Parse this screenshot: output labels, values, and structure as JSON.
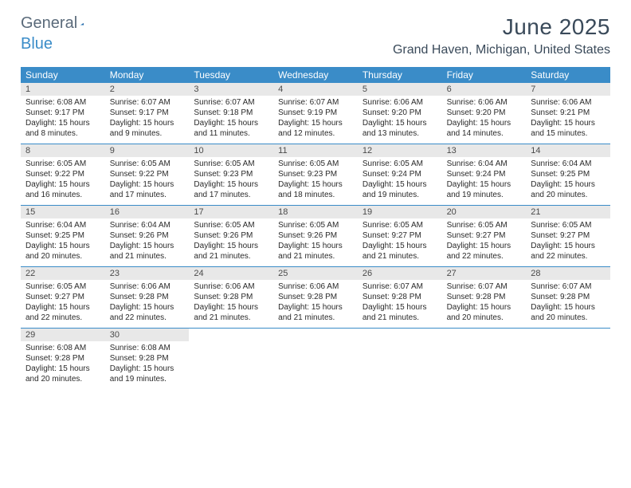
{
  "logo": {
    "general": "General",
    "blue": "Blue"
  },
  "title": {
    "month": "June 2025",
    "location": "Grand Haven, Michigan, United States"
  },
  "colors": {
    "header_bg": "#3a8cc8",
    "header_text": "#ffffff",
    "daynum_bg": "#e8e8e8",
    "daynum_text": "#4a4a4a",
    "body_text": "#2a2a2a",
    "title_text": "#3a4a5a",
    "rule": "#3a8cc8"
  },
  "dow": [
    "Sunday",
    "Monday",
    "Tuesday",
    "Wednesday",
    "Thursday",
    "Friday",
    "Saturday"
  ],
  "days": [
    {
      "n": "1",
      "sr": "6:08 AM",
      "ss": "9:17 PM",
      "dl": "15 hours and 8 minutes."
    },
    {
      "n": "2",
      "sr": "6:07 AM",
      "ss": "9:17 PM",
      "dl": "15 hours and 9 minutes."
    },
    {
      "n": "3",
      "sr": "6:07 AM",
      "ss": "9:18 PM",
      "dl": "15 hours and 11 minutes."
    },
    {
      "n": "4",
      "sr": "6:07 AM",
      "ss": "9:19 PM",
      "dl": "15 hours and 12 minutes."
    },
    {
      "n": "5",
      "sr": "6:06 AM",
      "ss": "9:20 PM",
      "dl": "15 hours and 13 minutes."
    },
    {
      "n": "6",
      "sr": "6:06 AM",
      "ss": "9:20 PM",
      "dl": "15 hours and 14 minutes."
    },
    {
      "n": "7",
      "sr": "6:06 AM",
      "ss": "9:21 PM",
      "dl": "15 hours and 15 minutes."
    },
    {
      "n": "8",
      "sr": "6:05 AM",
      "ss": "9:22 PM",
      "dl": "15 hours and 16 minutes."
    },
    {
      "n": "9",
      "sr": "6:05 AM",
      "ss": "9:22 PM",
      "dl": "15 hours and 17 minutes."
    },
    {
      "n": "10",
      "sr": "6:05 AM",
      "ss": "9:23 PM",
      "dl": "15 hours and 17 minutes."
    },
    {
      "n": "11",
      "sr": "6:05 AM",
      "ss": "9:23 PM",
      "dl": "15 hours and 18 minutes."
    },
    {
      "n": "12",
      "sr": "6:05 AM",
      "ss": "9:24 PM",
      "dl": "15 hours and 19 minutes."
    },
    {
      "n": "13",
      "sr": "6:04 AM",
      "ss": "9:24 PM",
      "dl": "15 hours and 19 minutes."
    },
    {
      "n": "14",
      "sr": "6:04 AM",
      "ss": "9:25 PM",
      "dl": "15 hours and 20 minutes."
    },
    {
      "n": "15",
      "sr": "6:04 AM",
      "ss": "9:25 PM",
      "dl": "15 hours and 20 minutes."
    },
    {
      "n": "16",
      "sr": "6:04 AM",
      "ss": "9:26 PM",
      "dl": "15 hours and 21 minutes."
    },
    {
      "n": "17",
      "sr": "6:05 AM",
      "ss": "9:26 PM",
      "dl": "15 hours and 21 minutes."
    },
    {
      "n": "18",
      "sr": "6:05 AM",
      "ss": "9:26 PM",
      "dl": "15 hours and 21 minutes."
    },
    {
      "n": "19",
      "sr": "6:05 AM",
      "ss": "9:27 PM",
      "dl": "15 hours and 21 minutes."
    },
    {
      "n": "20",
      "sr": "6:05 AM",
      "ss": "9:27 PM",
      "dl": "15 hours and 22 minutes."
    },
    {
      "n": "21",
      "sr": "6:05 AM",
      "ss": "9:27 PM",
      "dl": "15 hours and 22 minutes."
    },
    {
      "n": "22",
      "sr": "6:05 AM",
      "ss": "9:27 PM",
      "dl": "15 hours and 22 minutes."
    },
    {
      "n": "23",
      "sr": "6:06 AM",
      "ss": "9:28 PM",
      "dl": "15 hours and 22 minutes."
    },
    {
      "n": "24",
      "sr": "6:06 AM",
      "ss": "9:28 PM",
      "dl": "15 hours and 21 minutes."
    },
    {
      "n": "25",
      "sr": "6:06 AM",
      "ss": "9:28 PM",
      "dl": "15 hours and 21 minutes."
    },
    {
      "n": "26",
      "sr": "6:07 AM",
      "ss": "9:28 PM",
      "dl": "15 hours and 21 minutes."
    },
    {
      "n": "27",
      "sr": "6:07 AM",
      "ss": "9:28 PM",
      "dl": "15 hours and 20 minutes."
    },
    {
      "n": "28",
      "sr": "6:07 AM",
      "ss": "9:28 PM",
      "dl": "15 hours and 20 minutes."
    },
    {
      "n": "29",
      "sr": "6:08 AM",
      "ss": "9:28 PM",
      "dl": "15 hours and 20 minutes."
    },
    {
      "n": "30",
      "sr": "6:08 AM",
      "ss": "9:28 PM",
      "dl": "15 hours and 19 minutes."
    }
  ],
  "labels": {
    "sunrise": "Sunrise:",
    "sunset": "Sunset:",
    "daylight": "Daylight:"
  }
}
